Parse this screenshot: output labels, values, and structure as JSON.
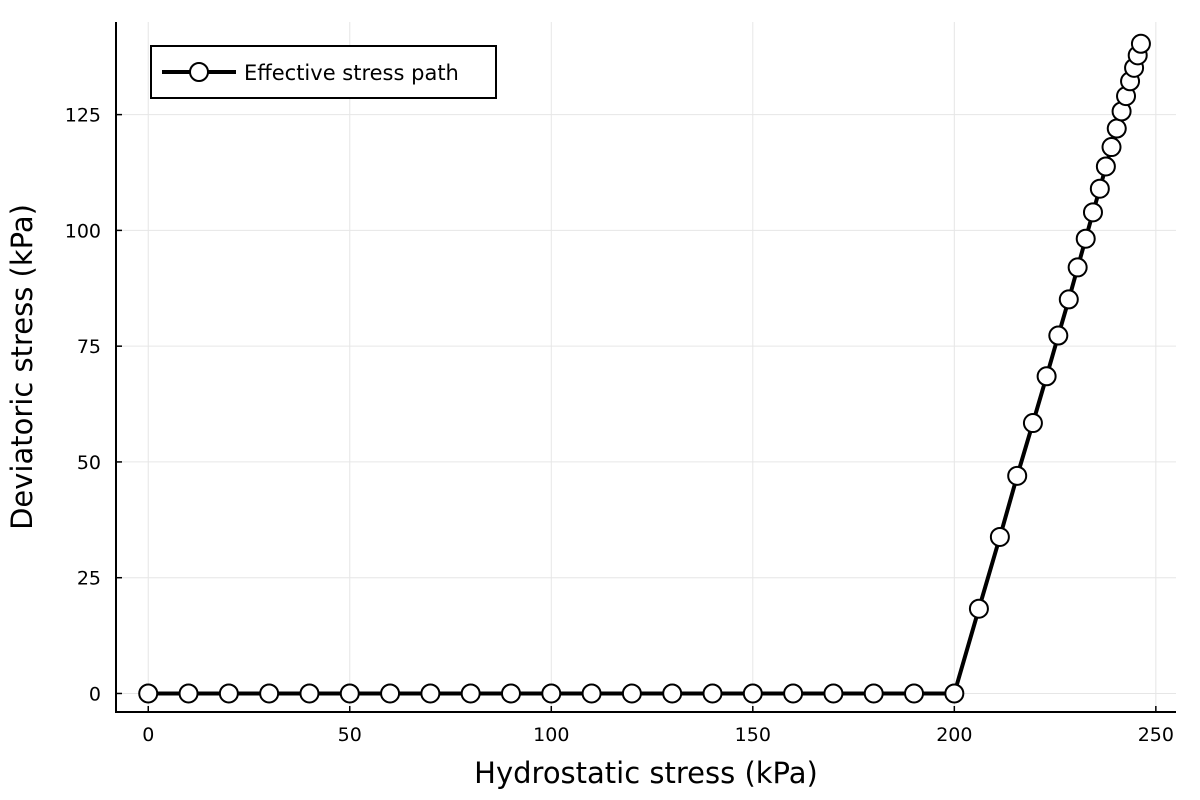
{
  "chart_data": {
    "type": "line",
    "xlabel": "Hydrostatic stress (kPa)",
    "ylabel": "Deviatoric stress (kPa)",
    "xlim": [
      -8,
      255
    ],
    "ylim": [
      -4,
      145
    ],
    "xticks": [
      0,
      50,
      100,
      150,
      200,
      250
    ],
    "yticks": [
      0,
      25,
      50,
      75,
      100,
      125
    ],
    "grid": true,
    "legend_position": "top-left",
    "line_color": "#000000",
    "marker_fill": "#ffffff",
    "series": [
      {
        "name": "Effective stress path",
        "x": [
          0,
          10,
          20,
          30,
          40,
          50,
          60,
          70,
          80,
          90,
          100,
          110,
          120,
          130,
          140,
          150,
          160,
          170,
          180,
          190,
          200,
          206.1,
          211.3,
          215.6,
          219.5,
          222.9,
          225.8,
          228.4,
          230.6,
          232.6,
          234.4,
          236.1,
          237.6,
          239.0,
          240.3,
          241.5,
          242.6,
          243.6,
          244.6,
          245.5,
          246.3
        ],
        "y": [
          0,
          0,
          0,
          0,
          0,
          0,
          0,
          0,
          0,
          0,
          0,
          0,
          0,
          0,
          0,
          0,
          0,
          0,
          0,
          0,
          0,
          18.3,
          33.8,
          47.0,
          58.4,
          68.5,
          77.3,
          85.1,
          92.0,
          98.2,
          103.9,
          109.0,
          113.8,
          118.0,
          122.0,
          125.7,
          129.0,
          132.2,
          135.1,
          137.8,
          140.3
        ]
      }
    ]
  }
}
